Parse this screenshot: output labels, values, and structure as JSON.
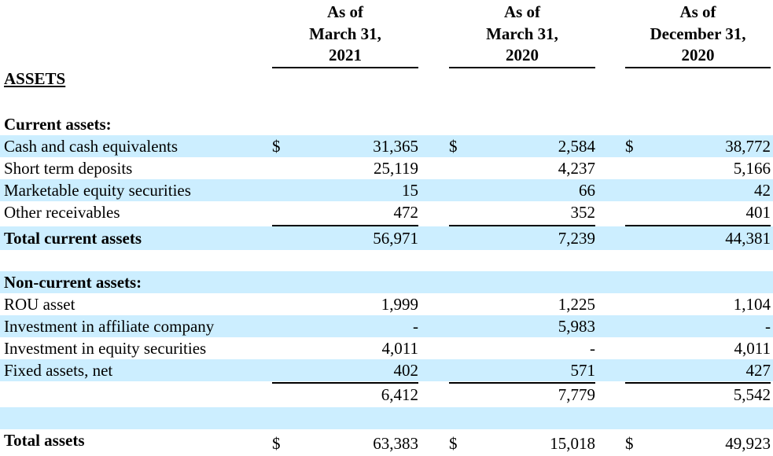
{
  "columns": [
    {
      "lines": [
        "As of",
        "March 31,",
        "2021"
      ]
    },
    {
      "lines": [
        "As of",
        "March 31,",
        "2020"
      ]
    },
    {
      "lines": [
        "As of",
        "December 31,",
        "2020"
      ]
    }
  ],
  "section_heading": "ASSETS",
  "current_assets_heading": "Current assets:",
  "current_rows": [
    {
      "label": "Cash and cash equivalents",
      "dollar": "$",
      "v1": "31,365",
      "v2": "2,584",
      "v3": "38,772"
    },
    {
      "label": "Short term deposits",
      "dollar": "",
      "v1": "25,119",
      "v2": "4,237",
      "v3": "5,166"
    },
    {
      "label": "Marketable equity securities",
      "dollar": "",
      "v1": "15",
      "v2": "66",
      "v3": "42"
    },
    {
      "label": "Other receivables",
      "dollar": "",
      "v1": "472",
      "v2": "352",
      "v3": "401"
    }
  ],
  "total_current": {
    "label": "Total current assets",
    "v1": "56,971",
    "v2": "7,239",
    "v3": "44,381"
  },
  "noncurrent_heading": "Non-current assets:",
  "noncurrent_rows": [
    {
      "label": "ROU asset",
      "v1": "1,999",
      "v2": "1,225",
      "v3": "1,104"
    },
    {
      "label": "Investment in affiliate company",
      "v1": "-",
      "v2": "5,983",
      "v3": "-"
    },
    {
      "label": "Investment in equity securities",
      "v1": "4,011",
      "v2": "-",
      "v3": "4,011"
    },
    {
      "label": "Fixed assets, net",
      "v1": "402",
      "v2": "571",
      "v3": "427"
    }
  ],
  "noncurrent_subtotal": {
    "v1": "6,412",
    "v2": "7,779",
    "v3": "5,542"
  },
  "total_assets": {
    "label": "Total assets",
    "dollar": "$",
    "v1": "63,383",
    "v2": "15,018",
    "v3": "49,923"
  }
}
